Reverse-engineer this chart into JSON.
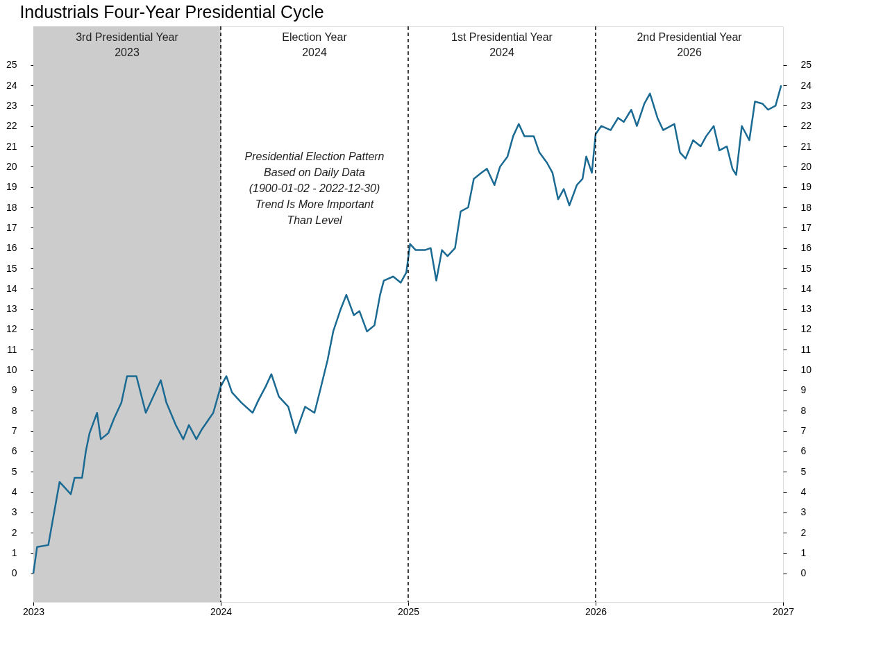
{
  "chart_data": {
    "type": "line",
    "title": "Industrials Four-Year Presidential Cycle",
    "xlim": [
      2023,
      2027
    ],
    "xticks": [
      2023,
      2024,
      2025,
      2026,
      2027
    ],
    "ylim": [
      -1.4,
      26.9
    ],
    "yticks": [
      0,
      1,
      2,
      3,
      4,
      5,
      6,
      7,
      8,
      9,
      10,
      11,
      12,
      13,
      14,
      15,
      16,
      17,
      18,
      19,
      20,
      21,
      22,
      23,
      24,
      25
    ],
    "y2lim": [
      -1.4,
      26.9
    ],
    "y2ticks": [
      0,
      1,
      2,
      3,
      4,
      5,
      6,
      7,
      8,
      9,
      10,
      11,
      12,
      13,
      14,
      15,
      16,
      17,
      18,
      19,
      20,
      21,
      22,
      23,
      24,
      25
    ],
    "grid": false,
    "marker": "none",
    "line_style": "solid",
    "bands": [
      {
        "axis": "x",
        "from": 2023,
        "to": 2024,
        "color": "#cccccc"
      }
    ],
    "ref_lines": [
      {
        "axis": "x",
        "value": 2024,
        "color": "#000000",
        "line_style": "dashed"
      },
      {
        "axis": "x",
        "value": 2025,
        "color": "#000000",
        "line_style": "dashed"
      },
      {
        "axis": "x",
        "value": 2026,
        "color": "#000000",
        "line_style": "dashed"
      }
    ],
    "annotations": [
      "3rd Presidential Year\n2023",
      "Election Year\n2024",
      "1st Presidential Year\n2024",
      "2nd Presidential Year\n2026",
      "Presidential Election Pattern\nBased on Daily Data\n(1900-01-02 - 2022-12-30)\n\nTrend Is More Important\nThan Level"
    ],
    "series": [
      {
        "color": "#1a6a93",
        "x": [
          2023.0,
          2023.02,
          2023.08,
          2023.14,
          2023.2,
          2023.22,
          2023.26,
          2023.28,
          2023.3,
          2023.34,
          2023.36,
          2023.4,
          2023.43,
          2023.47,
          2023.5,
          2023.55,
          2023.6,
          2023.64,
          2023.68,
          2023.71,
          2023.76,
          2023.8,
          2023.83,
          2023.87,
          2023.9,
          2023.96,
          2024.0,
          2024.03,
          2024.06,
          2024.11,
          2024.17,
          2024.2,
          2024.24,
          2024.27,
          2024.31,
          2024.36,
          2024.4,
          2024.45,
          2024.5,
          2024.53,
          2024.57,
          2024.6,
          2024.64,
          2024.67,
          2024.71,
          2024.74,
          2024.78,
          2024.82,
          2024.85,
          2024.87,
          2024.92,
          2024.96,
          2024.99,
          2025.01,
          2025.04,
          2025.09,
          2025.12,
          2025.15,
          2025.18,
          2025.21,
          2025.25,
          2025.28,
          2025.32,
          2025.35,
          2025.39,
          2025.42,
          2025.46,
          2025.49,
          2025.53,
          2025.56,
          2025.59,
          2025.62,
          2025.67,
          2025.7,
          2025.74,
          2025.77,
          2025.8,
          2025.83,
          2025.86,
          2025.9,
          2025.93,
          2025.95,
          2025.98,
          2026.0,
          2026.03,
          2026.08,
          2026.12,
          2026.15,
          2026.19,
          2026.22,
          2026.26,
          2026.29,
          2026.33,
          2026.36,
          2026.42,
          2026.45,
          2026.48,
          2026.52,
          2026.56,
          2026.59,
          2026.63,
          2026.66,
          2026.7,
          2026.73,
          2026.75,
          2026.78,
          2026.82,
          2026.85,
          2026.89,
          2026.92,
          2026.96,
          2026.99
        ],
        "values": [
          0,
          1.3,
          1.4,
          4.5,
          3.9,
          4.7,
          4.7,
          6.0,
          6.9,
          7.9,
          6.6,
          6.9,
          7.6,
          8.4,
          9.7,
          9.7,
          7.9,
          8.7,
          9.5,
          8.4,
          7.3,
          6.6,
          7.3,
          6.6,
          7.1,
          7.9,
          9.2,
          9.7,
          8.9,
          8.4,
          7.9,
          8.5,
          9.2,
          9.8,
          8.7,
          8.2,
          6.9,
          8.2,
          7.9,
          9.0,
          10.5,
          11.9,
          13.0,
          13.7,
          12.7,
          12.9,
          11.9,
          12.2,
          13.7,
          14.4,
          14.6,
          14.3,
          14.8,
          16.2,
          15.9,
          15.9,
          16.0,
          14.4,
          15.9,
          15.6,
          16.0,
          17.8,
          18.0,
          19.4,
          19.7,
          19.9,
          19.1,
          20.0,
          20.5,
          21.5,
          22.1,
          21.5,
          21.5,
          20.7,
          20.2,
          19.7,
          18.4,
          18.9,
          18.1,
          19.1,
          19.4,
          20.5,
          19.7,
          21.6,
          22.0,
          21.8,
          22.4,
          22.2,
          22.8,
          22.0,
          23.1,
          23.6,
          22.4,
          21.8,
          22.1,
          20.7,
          20.4,
          21.3,
          21.0,
          21.5,
          22.0,
          20.8,
          21.0,
          19.9,
          19.6,
          22.0,
          21.3,
          23.2,
          23.1,
          22.8,
          23.0,
          24.0
        ]
      }
    ]
  }
}
